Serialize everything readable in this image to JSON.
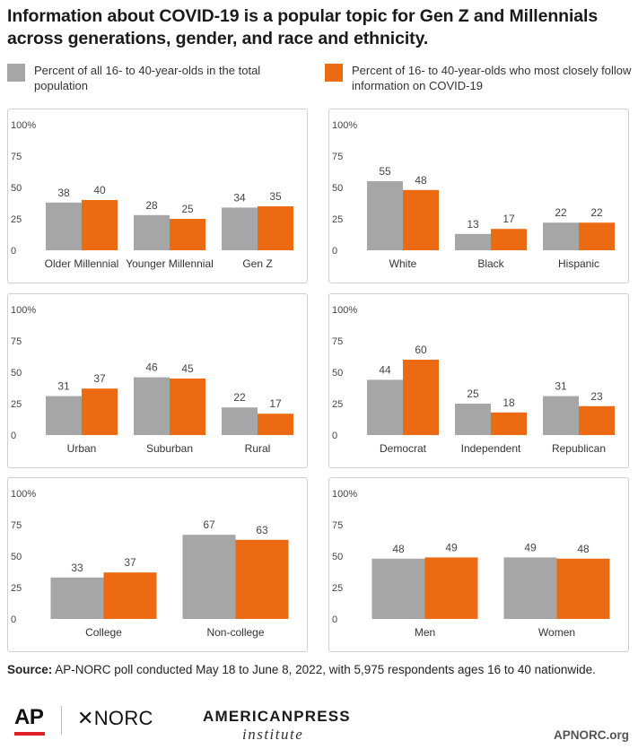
{
  "title": "Information about COVID-19 is a popular topic for Gen Z and Millennials across generations, gender, and race and ethnicity.",
  "colors": {
    "gray": "#a6a6a6",
    "orange": "#ec6b12"
  },
  "legend": [
    {
      "label": "Percent of all 16- to 40-year-olds in the total population",
      "color": "#a6a6a6"
    },
    {
      "label": "Percent of 16- to 40-year-olds who most closely follow information on COVID-19",
      "color": "#ec6b12"
    }
  ],
  "chart_data": [
    {
      "type": "bar",
      "categories": [
        "Older Millennial",
        "Younger Millennial",
        "Gen Z"
      ],
      "series": [
        {
          "name": "Percent of all 16- to 40-year-olds in the total population",
          "values": [
            38,
            28,
            34
          ]
        },
        {
          "name": "Percent of 16- to 40-year-olds who most closely follow information on COVID-19",
          "values": [
            40,
            25,
            35
          ]
        }
      ],
      "ylim": [
        0,
        100
      ],
      "yticks": [
        "0",
        "25",
        "50",
        "75",
        "100%"
      ]
    },
    {
      "type": "bar",
      "categories": [
        "White",
        "Black",
        "Hispanic"
      ],
      "series": [
        {
          "name": "Percent of all 16- to 40-year-olds in the total population",
          "values": [
            55,
            13,
            22
          ]
        },
        {
          "name": "Percent of 16- to 40-year-olds who most closely follow information on COVID-19",
          "values": [
            48,
            17,
            22
          ]
        }
      ],
      "ylim": [
        0,
        100
      ],
      "yticks": [
        "0",
        "25",
        "50",
        "75",
        "100%"
      ]
    },
    {
      "type": "bar",
      "categories": [
        "Urban",
        "Suburban",
        "Rural"
      ],
      "series": [
        {
          "name": "Percent of all 16- to 40-year-olds in the total population",
          "values": [
            31,
            46,
            22
          ]
        },
        {
          "name": "Percent of 16- to 40-year-olds who most closely follow information on COVID-19",
          "values": [
            37,
            45,
            17
          ]
        }
      ],
      "ylim": [
        0,
        100
      ],
      "yticks": [
        "0",
        "25",
        "50",
        "75",
        "100%"
      ]
    },
    {
      "type": "bar",
      "categories": [
        "Democrat",
        "Independent",
        "Republican"
      ],
      "series": [
        {
          "name": "Percent of all 16- to 40-year-olds in the total population",
          "values": [
            44,
            25,
            31
          ]
        },
        {
          "name": "Percent of 16- to 40-year-olds who most closely follow information on COVID-19",
          "values": [
            60,
            18,
            23
          ]
        }
      ],
      "ylim": [
        0,
        100
      ],
      "yticks": [
        "0",
        "25",
        "50",
        "75",
        "100%"
      ]
    },
    {
      "type": "bar",
      "categories": [
        "College",
        "Non-college"
      ],
      "series": [
        {
          "name": "Percent of all 16- to 40-year-olds in the total population",
          "values": [
            33,
            67
          ]
        },
        {
          "name": "Percent of 16- to 40-year-olds who most closely follow information on COVID-19",
          "values": [
            37,
            63
          ]
        }
      ],
      "ylim": [
        0,
        100
      ],
      "yticks": [
        "0",
        "25",
        "50",
        "75",
        "100%"
      ]
    },
    {
      "type": "bar",
      "categories": [
        "Men",
        "Women"
      ],
      "series": [
        {
          "name": "Percent of all 16- to 40-year-olds in the total population",
          "values": [
            48,
            49
          ]
        },
        {
          "name": "Percent of 16- to 40-year-olds who most closely follow information on COVID-19",
          "values": [
            49,
            48
          ]
        }
      ],
      "ylim": [
        0,
        100
      ],
      "yticks": [
        "0",
        "25",
        "50",
        "75",
        "100%"
      ]
    }
  ],
  "source": {
    "label": "Source:",
    "text": "AP-NORC poll conducted May 18 to June 8, 2022, with 5,975 respondents ages 16 to 40 nationwide."
  },
  "logos": {
    "ap": "AP",
    "norc": "NORC",
    "api_line1": "AMERICANPRESS",
    "api_line2": "institute"
  },
  "credit": "APNORC.org"
}
